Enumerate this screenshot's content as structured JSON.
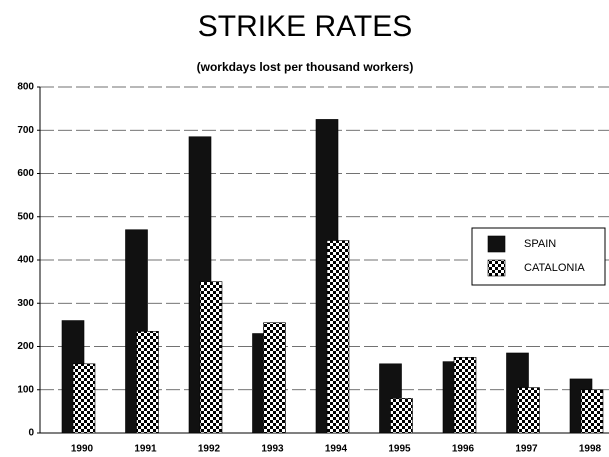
{
  "chart_data": {
    "type": "bar",
    "title": "STRIKE RATES",
    "subtitle": "(workdays lost per thousand workers)",
    "categories": [
      "1990",
      "1991",
      "1992",
      "1993",
      "1994",
      "1995",
      "1996",
      "1997",
      "1998"
    ],
    "series": [
      {
        "name": "SPAIN",
        "color": "#111111",
        "values": [
          260,
          470,
          685,
          230,
          725,
          160,
          165,
          185,
          125
        ]
      },
      {
        "name": "CATALONIA",
        "color": "#000000",
        "pattern": "checker",
        "values": [
          160,
          235,
          350,
          255,
          445,
          80,
          175,
          105,
          100
        ]
      }
    ],
    "ylim": [
      0,
      800
    ],
    "yticks": [
      0,
      100,
      200,
      300,
      400,
      500,
      600,
      700,
      800
    ],
    "grid": true,
    "legend": "right"
  }
}
